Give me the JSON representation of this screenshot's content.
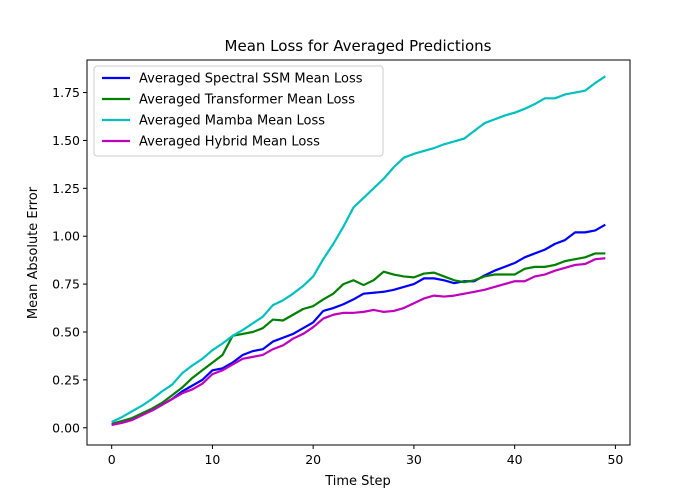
{
  "chart_data": {
    "type": "line",
    "title": "Mean Loss for Averaged Predictions",
    "xlabel": "Time Step",
    "ylabel": "Mean Absolute Error",
    "xlim": [
      -2.45,
      51.45
    ],
    "ylim": [
      -0.09,
      1.92
    ],
    "xticks": [
      0,
      10,
      20,
      30,
      40,
      50
    ],
    "xtick_labels": [
      "0",
      "10",
      "20",
      "30",
      "40",
      "50"
    ],
    "yticks": [
      0.0,
      0.25,
      0.5,
      0.75,
      1.0,
      1.25,
      1.5,
      1.75
    ],
    "ytick_labels": [
      "0.00",
      "0.25",
      "0.50",
      "0.75",
      "1.00",
      "1.25",
      "1.50",
      "1.75"
    ],
    "grid": false,
    "legend_position": "top-left",
    "x": [
      0,
      1,
      2,
      3,
      4,
      5,
      6,
      7,
      8,
      9,
      10,
      11,
      12,
      13,
      14,
      15,
      16,
      17,
      18,
      19,
      20,
      21,
      22,
      23,
      24,
      25,
      26,
      27,
      28,
      29,
      30,
      31,
      32,
      33,
      34,
      35,
      36,
      37,
      38,
      39,
      40,
      41,
      42,
      43,
      44,
      45,
      46,
      47,
      48,
      49
    ],
    "series": [
      {
        "name": "Averaged Spectral SSM Mean Loss",
        "color": "#0000ff",
        "values": [
          0.015,
          0.03,
          0.045,
          0.07,
          0.09,
          0.12,
          0.15,
          0.19,
          0.22,
          0.25,
          0.3,
          0.31,
          0.34,
          0.38,
          0.4,
          0.41,
          0.45,
          0.47,
          0.49,
          0.52,
          0.55,
          0.61,
          0.625,
          0.645,
          0.67,
          0.7,
          0.705,
          0.71,
          0.72,
          0.735,
          0.75,
          0.78,
          0.78,
          0.77,
          0.755,
          0.765,
          0.765,
          0.795,
          0.82,
          0.84,
          0.86,
          0.89,
          0.91,
          0.93,
          0.96,
          0.98,
          1.02,
          1.02,
          1.03,
          1.06
        ]
      },
      {
        "name": "Averaged Transformer Mean Loss",
        "color": "#008000",
        "values": [
          0.02,
          0.035,
          0.05,
          0.075,
          0.1,
          0.13,
          0.17,
          0.21,
          0.26,
          0.3,
          0.34,
          0.38,
          0.48,
          0.49,
          0.5,
          0.52,
          0.565,
          0.56,
          0.59,
          0.62,
          0.635,
          0.67,
          0.7,
          0.75,
          0.77,
          0.745,
          0.77,
          0.815,
          0.8,
          0.79,
          0.785,
          0.805,
          0.81,
          0.79,
          0.77,
          0.76,
          0.77,
          0.79,
          0.8,
          0.8,
          0.8,
          0.83,
          0.84,
          0.84,
          0.85,
          0.87,
          0.88,
          0.89,
          0.91,
          0.91
        ]
      },
      {
        "name": "Averaged Mamba Mean Loss",
        "color": "#00bfbf",
        "values": [
          0.03,
          0.055,
          0.085,
          0.115,
          0.15,
          0.19,
          0.225,
          0.285,
          0.325,
          0.36,
          0.405,
          0.44,
          0.48,
          0.51,
          0.545,
          0.58,
          0.64,
          0.665,
          0.7,
          0.74,
          0.79,
          0.88,
          0.96,
          1.05,
          1.15,
          1.2,
          1.25,
          1.3,
          1.36,
          1.41,
          1.43,
          1.445,
          1.46,
          1.48,
          1.495,
          1.51,
          1.55,
          1.59,
          1.61,
          1.63,
          1.645,
          1.665,
          1.69,
          1.72,
          1.72,
          1.74,
          1.75,
          1.76,
          1.8,
          1.835
        ]
      },
      {
        "name": "Averaged Hybrid Mean Loss",
        "color": "#bf00bf",
        "values": [
          0.015,
          0.025,
          0.04,
          0.065,
          0.09,
          0.12,
          0.15,
          0.18,
          0.2,
          0.23,
          0.28,
          0.3,
          0.33,
          0.36,
          0.37,
          0.38,
          0.41,
          0.43,
          0.465,
          0.49,
          0.525,
          0.57,
          0.59,
          0.6,
          0.6,
          0.605,
          0.615,
          0.605,
          0.61,
          0.625,
          0.65,
          0.675,
          0.69,
          0.685,
          0.69,
          0.7,
          0.71,
          0.72,
          0.735,
          0.75,
          0.765,
          0.765,
          0.79,
          0.8,
          0.82,
          0.835,
          0.85,
          0.855,
          0.88,
          0.885
        ]
      }
    ]
  }
}
